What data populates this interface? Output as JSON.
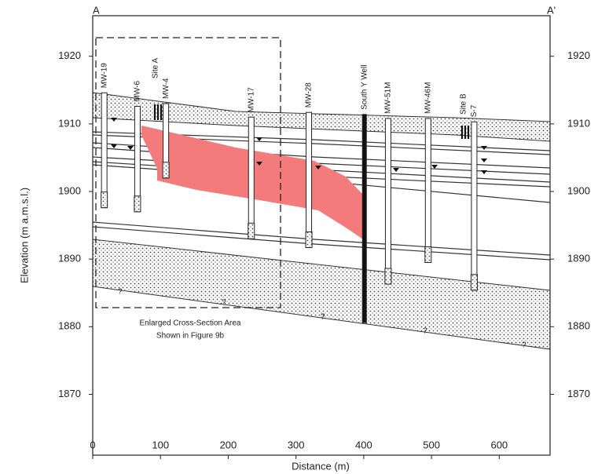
{
  "header": {
    "left_label": "A",
    "right_label": "A'"
  },
  "axes": {
    "x_title": "Distance (m)",
    "y_title": "Elevation (m a.m.s.l.)",
    "xlim": [
      0,
      675
    ],
    "ylim": [
      1861,
      1926
    ],
    "xticks": [
      0,
      100,
      200,
      300,
      400,
      500,
      600
    ],
    "yticks": [
      1870,
      1880,
      1890,
      1900,
      1910,
      1920
    ]
  },
  "wells": [
    {
      "name": "MW-19",
      "x": 17,
      "top": 1914.6,
      "bottom": 1897.6
    },
    {
      "name": "MW-6",
      "x": 66,
      "top": 1912.6,
      "bottom": 1897
    },
    {
      "name": "MW-4",
      "x": 108,
      "top": 1913,
      "bottom": 1902
    },
    {
      "name": "MW-17",
      "x": 234,
      "top": 1911,
      "bottom": 1893
    },
    {
      "name": "MW-28",
      "x": 319,
      "top": 1911.7,
      "bottom": 1891.7
    },
    {
      "name": "South Y Well",
      "x": 401,
      "top": 1911.4,
      "bottom": 1880.6
    },
    {
      "name": "MW-51M",
      "x": 436,
      "top": 1910.8,
      "bottom": 1886.3
    },
    {
      "name": "MW-46M",
      "x": 495,
      "top": 1910.8,
      "bottom": 1889.5
    },
    {
      "name": "S-7",
      "x": 563,
      "top": 1910.3,
      "bottom": 1885.4
    }
  ],
  "sites": [
    "Site A",
    "Site B"
  ],
  "annotation": [
    "Enlarged Cross-Section Area",
    "Shown in Figure 9b"
  ],
  "contact_query_labels": [
    "?",
    "?",
    "?",
    "?",
    "?"
  ]
}
